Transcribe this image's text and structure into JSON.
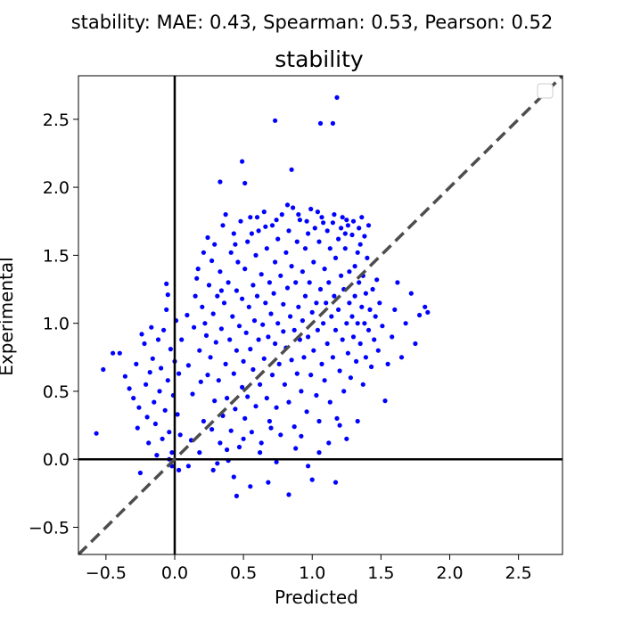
{
  "figure": {
    "suptitle": "stability: MAE: 0.43, Spearman: 0.53, Pearson: 0.52"
  },
  "chart_data": {
    "type": "scatter",
    "title": "stability",
    "xlabel": "Predicted",
    "ylabel": "Experimental",
    "xlim": [
      -0.7,
      2.82
    ],
    "ylim": [
      -0.7,
      2.82
    ],
    "x_ticks": [
      "−0.5",
      "0.0",
      "0.5",
      "1.0",
      "1.5",
      "2.0",
      "2.5"
    ],
    "y_ticks": [
      "−0.5",
      "0.0",
      "0.5",
      "1.0",
      "1.5",
      "2.0",
      "2.5"
    ],
    "x_tick_values": [
      -0.5,
      0.0,
      0.5,
      1.0,
      1.5,
      2.0,
      2.5
    ],
    "y_tick_values": [
      -0.5,
      0.0,
      0.5,
      1.0,
      1.5,
      2.0,
      2.5
    ],
    "point_color": "#0000ff",
    "diagonal_color": "#4d4d4d",
    "reference_lines": {
      "x0": true,
      "y0": true,
      "diagonal": true
    },
    "grid": false,
    "legend": "top-right (empty)",
    "points": [
      [
        -0.57,
        0.19
      ],
      [
        -0.52,
        0.66
      ],
      [
        -0.45,
        0.78
      ],
      [
        -0.4,
        0.78
      ],
      [
        -0.36,
        0.61
      ],
      [
        -0.33,
        0.52
      ],
      [
        -0.3,
        0.45
      ],
      [
        -0.28,
        0.7
      ],
      [
        -0.27,
        0.23
      ],
      [
        -0.26,
        0.38
      ],
      [
        -0.25,
        -0.1
      ],
      [
        -0.24,
        0.92
      ],
      [
        -0.22,
        0.85
      ],
      [
        -0.21,
        0.55
      ],
      [
        -0.2,
        0.31
      ],
      [
        -0.19,
        0.12
      ],
      [
        -0.18,
        0.64
      ],
      [
        -0.17,
        0.97
      ],
      [
        -0.16,
        0.74
      ],
      [
        -0.15,
        0.42
      ],
      [
        -0.14,
        0.26
      ],
      [
        -0.13,
        0.03
      ],
      [
        -0.12,
        0.88
      ],
      [
        -0.11,
        0.5
      ],
      [
        -0.1,
        0.67
      ],
      [
        -0.09,
        0.15
      ],
      [
        -0.08,
        0.95
      ],
      [
        -0.07,
        0.36
      ],
      [
        -0.06,
        1.1
      ],
      [
        -0.05,
        0.58
      ],
      [
        -0.04,
        0.2
      ],
      [
        -0.03,
        0.81
      ],
      [
        -0.02,
        0.05
      ],
      [
        -0.01,
        0.47
      ],
      [
        0.0,
        0.72
      ],
      [
        0.01,
        1.02
      ],
      [
        0.02,
        0.33
      ],
      [
        0.03,
        0.63
      ],
      [
        0.04,
        0.18
      ],
      [
        0.05,
        0.88
      ],
      [
        -0.06,
        1.29
      ],
      [
        -0.05,
        1.21
      ],
      [
        -0.04,
        0.0
      ],
      [
        -0.02,
        -0.05
      ],
      [
        0.03,
        -0.08
      ],
      [
        0.09,
        1.06
      ],
      [
        0.1,
        0.69
      ],
      [
        0.1,
        -0.05
      ],
      [
        0.12,
        0.14
      ],
      [
        0.13,
        0.48
      ],
      [
        0.14,
        0.97
      ],
      [
        0.15,
        1.2
      ],
      [
        0.16,
        1.33
      ],
      [
        0.17,
        1.4
      ],
      [
        0.18,
        0.8
      ],
      [
        0.19,
        0.57
      ],
      [
        0.2,
        1.12
      ],
      [
        0.21,
        1.52
      ],
      [
        0.21,
        0.28
      ],
      [
        0.22,
        1.0
      ],
      [
        0.23,
        0.91
      ],
      [
        0.24,
        1.63
      ],
      [
        0.24,
        0.62
      ],
      [
        0.25,
        1.28
      ],
      [
        0.26,
        0.75
      ],
      [
        0.27,
        1.46
      ],
      [
        0.27,
        0.22
      ],
      [
        0.28,
        1.07
      ],
      [
        0.29,
        1.58
      ],
      [
        0.29,
        0.43
      ],
      [
        0.3,
        0.86
      ],
      [
        0.31,
        1.2
      ],
      [
        0.31,
        -0.03
      ],
      [
        0.32,
        0.58
      ],
      [
        0.33,
        1.38
      ],
      [
        0.33,
        0.12
      ],
      [
        0.34,
        0.96
      ],
      [
        0.35,
        1.72
      ],
      [
        0.35,
        0.32
      ],
      [
        0.36,
        1.15
      ],
      [
        0.37,
        0.7
      ],
      [
        0.37,
        1.8
      ],
      [
        0.38,
        0.45
      ],
      [
        0.39,
        1.3
      ],
      [
        0.39,
        -0.01
      ],
      [
        0.4,
        0.88
      ],
      [
        0.41,
        1.52
      ],
      [
        0.41,
        0.21
      ],
      [
        0.42,
        1.05
      ],
      [
        0.43,
        0.63
      ],
      [
        0.43,
        1.66
      ],
      [
        0.44,
        0.37
      ],
      [
        0.45,
        1.24
      ],
      [
        0.45,
        0.8
      ],
      [
        0.46,
        1.45
      ],
      [
        0.47,
        0.09
      ],
      [
        0.47,
        0.98
      ],
      [
        0.48,
        1.75
      ],
      [
        0.49,
        0.53
      ],
      [
        0.49,
        1.18
      ],
      [
        0.5,
        0.72
      ],
      [
        0.51,
        1.4
      ],
      [
        0.51,
        0.3
      ],
      [
        0.52,
        0.93
      ],
      [
        0.53,
        1.6
      ],
      [
        0.53,
        0.46
      ],
      [
        0.54,
        1.12
      ],
      [
        0.55,
        0.81
      ],
      [
        0.55,
        1.78
      ],
      [
        0.56,
        0.2
      ],
      [
        0.57,
        1.28
      ],
      [
        0.57,
        0.66
      ],
      [
        0.58,
        1.02
      ],
      [
        0.59,
        1.5
      ],
      [
        0.59,
        0.39
      ],
      [
        0.6,
        1.2
      ],
      [
        0.61,
        0.88
      ],
      [
        0.61,
        1.68
      ],
      [
        0.62,
        0.55
      ],
      [
        0.63,
        1.36
      ],
      [
        0.63,
        0.12
      ],
      [
        0.64,
        0.99
      ],
      [
        0.65,
        1.82
      ],
      [
        0.65,
        0.74
      ],
      [
        0.66,
        1.15
      ],
      [
        0.67,
        0.45
      ],
      [
        0.67,
        1.55
      ],
      [
        0.68,
        0.9
      ],
      [
        0.69,
        1.3
      ],
      [
        0.69,
        0.28
      ],
      [
        0.7,
        1.07
      ],
      [
        0.71,
        1.72
      ],
      [
        0.71,
        0.62
      ],
      [
        0.72,
        1.22
      ],
      [
        0.73,
        0.85
      ],
      [
        0.73,
        1.45
      ],
      [
        0.74,
        0.38
      ],
      [
        0.75,
        1.62
      ],
      [
        0.75,
        1.0
      ],
      [
        0.76,
        0.7
      ],
      [
        0.77,
        1.35
      ],
      [
        0.77,
        0.18
      ],
      [
        0.78,
        1.8
      ],
      [
        0.79,
        0.94
      ],
      [
        0.79,
        1.14
      ],
      [
        0.8,
        0.55
      ],
      [
        0.81,
        1.52
      ],
      [
        0.81,
        0.82
      ],
      [
        0.82,
        1.26
      ],
      [
        0.83,
        1.68
      ],
      [
        0.83,
        0.42
      ],
      [
        0.84,
        1.05
      ],
      [
        0.85,
        0.73
      ],
      [
        0.85,
        1.42
      ],
      [
        0.86,
        1.85
      ],
      [
        0.87,
        0.95
      ],
      [
        0.87,
        0.24
      ],
      [
        0.88,
        1.3
      ],
      [
        0.89,
        1.6
      ],
      [
        0.89,
        0.63
      ],
      [
        0.9,
        1.12
      ],
      [
        0.91,
        0.88
      ],
      [
        0.91,
        1.76
      ],
      [
        0.92,
        0.5
      ],
      [
        0.93,
        1.38
      ],
      [
        0.93,
        1.02
      ],
      [
        0.94,
        0.75
      ],
      [
        0.95,
        1.55
      ],
      [
        0.95,
        1.2
      ],
      [
        0.96,
        0.35
      ],
      [
        0.97,
        1.66
      ],
      [
        0.97,
        0.9
      ],
      [
        0.98,
        1.3
      ],
      [
        0.99,
        0.62
      ],
      [
        0.99,
        1.84
      ],
      [
        1.0,
        1.08
      ],
      [
        1.01,
        0.8
      ],
      [
        1.01,
        1.45
      ],
      [
        1.02,
        1.7
      ],
      [
        1.03,
        0.47
      ],
      [
        1.03,
        1.15
      ],
      [
        1.04,
        0.95
      ],
      [
        1.05,
        1.6
      ],
      [
        1.05,
        0.28
      ],
      [
        1.06,
        1.25
      ],
      [
        1.07,
        0.7
      ],
      [
        1.07,
        1.78
      ],
      [
        1.08,
        1.0
      ],
      [
        1.09,
        1.4
      ],
      [
        1.09,
        0.58
      ],
      [
        1.1,
        1.15
      ],
      [
        1.11,
        1.68
      ],
      [
        1.11,
        0.85
      ],
      [
        1.12,
        1.3
      ],
      [
        1.13,
        0.42
      ],
      [
        1.13,
        1.55
      ],
      [
        1.14,
        1.05
      ],
      [
        1.15,
        0.75
      ],
      [
        1.15,
        1.74
      ],
      [
        1.16,
        1.2
      ],
      [
        1.17,
        0.95
      ],
      [
        1.17,
        1.48
      ],
      [
        1.18,
        0.3
      ],
      [
        1.19,
        1.62
      ],
      [
        1.19,
        1.1
      ],
      [
        1.2,
        0.65
      ],
      [
        1.21,
        1.35
      ],
      [
        1.21,
        1.7
      ],
      [
        1.22,
        0.88
      ],
      [
        1.23,
        1.25
      ],
      [
        1.23,
        0.5
      ],
      [
        1.24,
        1.55
      ],
      [
        1.25,
        1.0
      ],
      [
        1.25,
        1.76
      ],
      [
        1.26,
        0.78
      ],
      [
        1.27,
        1.38
      ],
      [
        1.27,
        1.15
      ],
      [
        1.28,
        0.6
      ],
      [
        1.29,
        1.65
      ],
      [
        1.29,
        1.05
      ],
      [
        1.3,
        0.9
      ],
      [
        1.31,
        1.42
      ],
      [
        1.31,
        1.2
      ],
      [
        1.32,
        0.72
      ],
      [
        1.33,
        1.52
      ],
      [
        1.33,
        1.0
      ],
      [
        1.34,
        1.3
      ],
      [
        1.35,
        0.85
      ],
      [
        1.35,
        1.58
      ],
      [
        1.36,
        1.12
      ],
      [
        1.37,
        0.55
      ],
      [
        1.37,
        1.35
      ],
      [
        1.38,
        1.0
      ],
      [
        1.39,
        0.75
      ],
      [
        1.39,
        1.22
      ],
      [
        1.4,
        1.48
      ],
      [
        1.41,
        0.95
      ],
      [
        1.42,
        1.1
      ],
      [
        1.43,
        0.68
      ],
      [
        1.44,
        1.25
      ],
      [
        1.45,
        0.88
      ],
      [
        1.46,
        1.05
      ],
      [
        1.47,
        1.32
      ],
      [
        1.48,
        0.8
      ],
      [
        1.49,
        1.15
      ],
      [
        1.51,
        0.98
      ],
      [
        1.53,
        0.43
      ],
      [
        1.55,
        0.7
      ],
      [
        1.58,
        0.9
      ],
      [
        1.6,
        1.1
      ],
      [
        1.62,
        1.3
      ],
      [
        1.65,
        0.75
      ],
      [
        1.68,
        1.0
      ],
      [
        1.72,
        1.22
      ],
      [
        1.75,
        0.85
      ],
      [
        1.78,
        1.06
      ],
      [
        1.82,
        1.12
      ],
      [
        1.84,
        1.08
      ],
      [
        0.33,
        2.04
      ],
      [
        0.49,
        2.19
      ],
      [
        0.51,
        2.03
      ],
      [
        0.73,
        2.49
      ],
      [
        0.85,
        2.13
      ],
      [
        1.06,
        2.47
      ],
      [
        1.15,
        2.47
      ],
      [
        1.18,
        2.66
      ],
      [
        0.55,
        -0.2
      ],
      [
        0.45,
        -0.27
      ],
      [
        0.83,
        -0.26
      ],
      [
        0.68,
        -0.17
      ],
      [
        1.0,
        -0.15
      ],
      [
        1.17,
        -0.17
      ],
      [
        0.43,
        -0.13
      ],
      [
        0.5,
        0.15
      ],
      [
        0.62,
        0.05
      ],
      [
        0.74,
        -0.02
      ],
      [
        0.88,
        0.08
      ],
      [
        0.97,
        -0.05
      ],
      [
        1.12,
        0.12
      ],
      [
        1.25,
        0.15
      ],
      [
        1.33,
        0.28
      ],
      [
        0.18,
        0.05
      ],
      [
        0.28,
        -0.08
      ],
      [
        0.38,
        0.07
      ],
      [
        0.7,
        0.23
      ],
      [
        0.92,
        0.17
      ],
      [
        1.05,
        0.05
      ],
      [
        1.2,
        0.25
      ],
      [
        0.34,
        1.24
      ],
      [
        0.44,
        1.58
      ],
      [
        0.56,
        1.66
      ],
      [
        0.6,
        1.78
      ],
      [
        0.66,
        1.71
      ],
      [
        0.74,
        1.76
      ],
      [
        0.82,
        1.87
      ],
      [
        0.9,
        1.8
      ],
      [
        0.96,
        1.75
      ],
      [
        1.04,
        1.82
      ],
      [
        1.08,
        1.74
      ],
      [
        1.16,
        1.8
      ],
      [
        1.22,
        1.78
      ],
      [
        1.26,
        1.72
      ],
      [
        1.3,
        1.75
      ],
      [
        1.34,
        1.7
      ],
      [
        1.38,
        1.64
      ],
      [
        1.41,
        1.72
      ],
      [
        1.36,
        1.78
      ],
      [
        1.24,
        1.66
      ]
    ]
  }
}
